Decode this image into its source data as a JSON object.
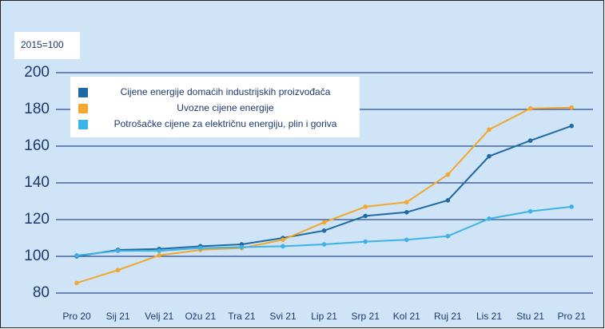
{
  "chart_data": {
    "type": "line",
    "unit_label": "2015=100",
    "categories": [
      "Pro 20",
      "Sij 21",
      "Velj 21",
      "Ožu 21",
      "Tra 21",
      "Svi 21",
      "Lip 21",
      "Srp 21",
      "Kol 21",
      "Ruj 21",
      "Lis 21",
      "Stu 21",
      "Pro 21"
    ],
    "series": [
      {
        "name": "Cijene energije domaćih industrijskih proizvođača",
        "color": "#1f6aa5",
        "values": [
          100,
          103.5,
          104,
          105.5,
          106.5,
          110,
          114,
          122,
          124,
          130.5,
          154.5,
          163,
          171
        ]
      },
      {
        "name": "Uvozne cijene energije",
        "color": "#f2a72e",
        "values": [
          85.5,
          92.5,
          100.5,
          103.5,
          104.5,
          109,
          118.5,
          127,
          129.5,
          144.5,
          169,
          180.5,
          181
        ]
      },
      {
        "name": "Potrošačke cijene za električnu energiju, plin i goriva",
        "color": "#3db2e4",
        "values": [
          100.5,
          103,
          103,
          104.5,
          105,
          105.5,
          106.5,
          108,
          109,
          111,
          120.5,
          124.5,
          127
        ]
      }
    ],
    "ylim": [
      80,
      200
    ],
    "yticks": [
      80,
      100,
      120,
      140,
      160,
      180,
      200
    ],
    "grid": true
  }
}
